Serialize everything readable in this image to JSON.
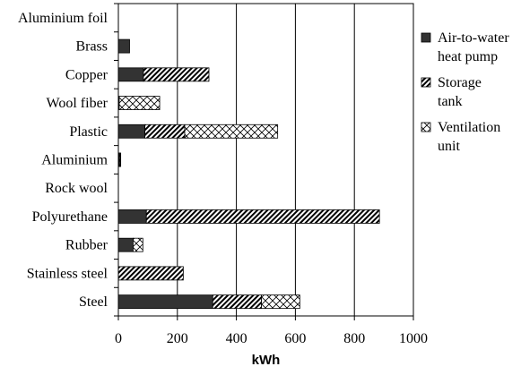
{
  "chart_data": {
    "type": "bar",
    "orientation": "horizontal",
    "stacked": true,
    "categories": [
      "Aluminium foil",
      "Brass",
      "Copper",
      "Wool fiber",
      "Plastic",
      "Aluminium",
      "Rock wool",
      "Polyurethane",
      "Rubber",
      "Stainless steel",
      "Steel"
    ],
    "series": [
      {
        "name": "Air-to-water heat pump",
        "legend_lines": [
          "Air-to-water",
          "heat pump"
        ],
        "values": [
          0,
          38,
          85,
          0,
          90,
          3,
          0,
          95,
          50,
          0,
          320
        ],
        "color": "#333333",
        "pattern": "solid"
      },
      {
        "name": "Storage tank",
        "legend_lines": [
          "Storage",
          "tank"
        ],
        "values": [
          0,
          0,
          222,
          3,
          135,
          3,
          0,
          790,
          0,
          220,
          165
        ],
        "color": "#000000",
        "pattern": "dense-diagonal-hatch"
      },
      {
        "name": "Ventilation unit",
        "legend_lines": [
          "Ventilation",
          "unit"
        ],
        "values": [
          0,
          0,
          0,
          137,
          315,
          2,
          0,
          0,
          33,
          0,
          130
        ],
        "color": "#000000",
        "pattern": "crosshatch"
      }
    ],
    "xlabel": "kWh",
    "ylabel": "",
    "title": "",
    "xlim": [
      0,
      1000
    ],
    "xticks": [
      0,
      200,
      400,
      600,
      800,
      1000
    ],
    "grid": "vertical",
    "legend_position": "right"
  }
}
